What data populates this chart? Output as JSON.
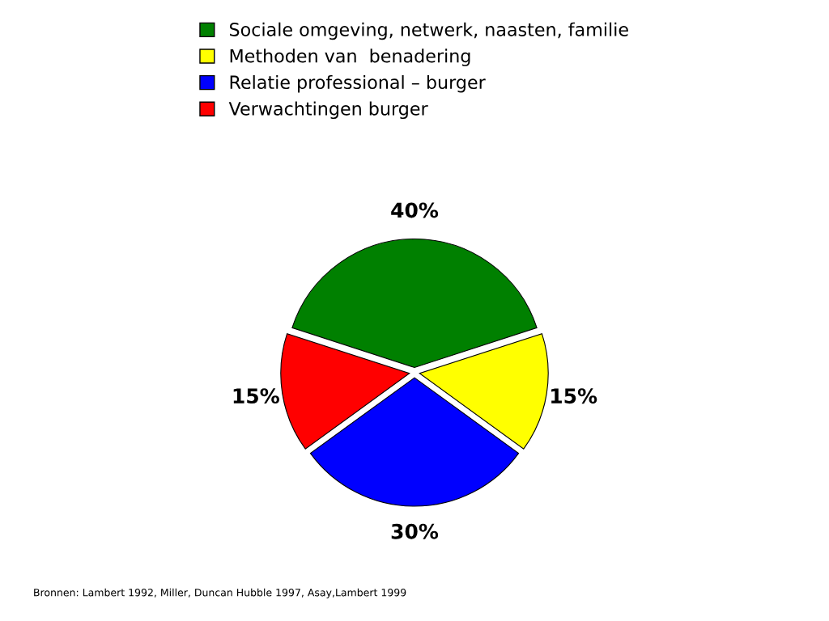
{
  "chart_data": {
    "type": "pie",
    "categories": [
      "Sociale omgeving, netwerk, naasten, familie",
      "Methoden van  benadering",
      "Relatie professional – burger",
      "Verwachtingen burger"
    ],
    "values": [
      40,
      15,
      30,
      15
    ],
    "colors": [
      "#008000",
      "#ffff00",
      "#0000ff",
      "#ff0000"
    ],
    "value_labels": [
      "40%",
      "15%",
      "30%",
      "15%"
    ],
    "legend": "top",
    "annotations": [
      "Bronnen: Lambert 1992, Miller, Duncan Hubble 1997, Asay,Lambert 1999"
    ]
  }
}
